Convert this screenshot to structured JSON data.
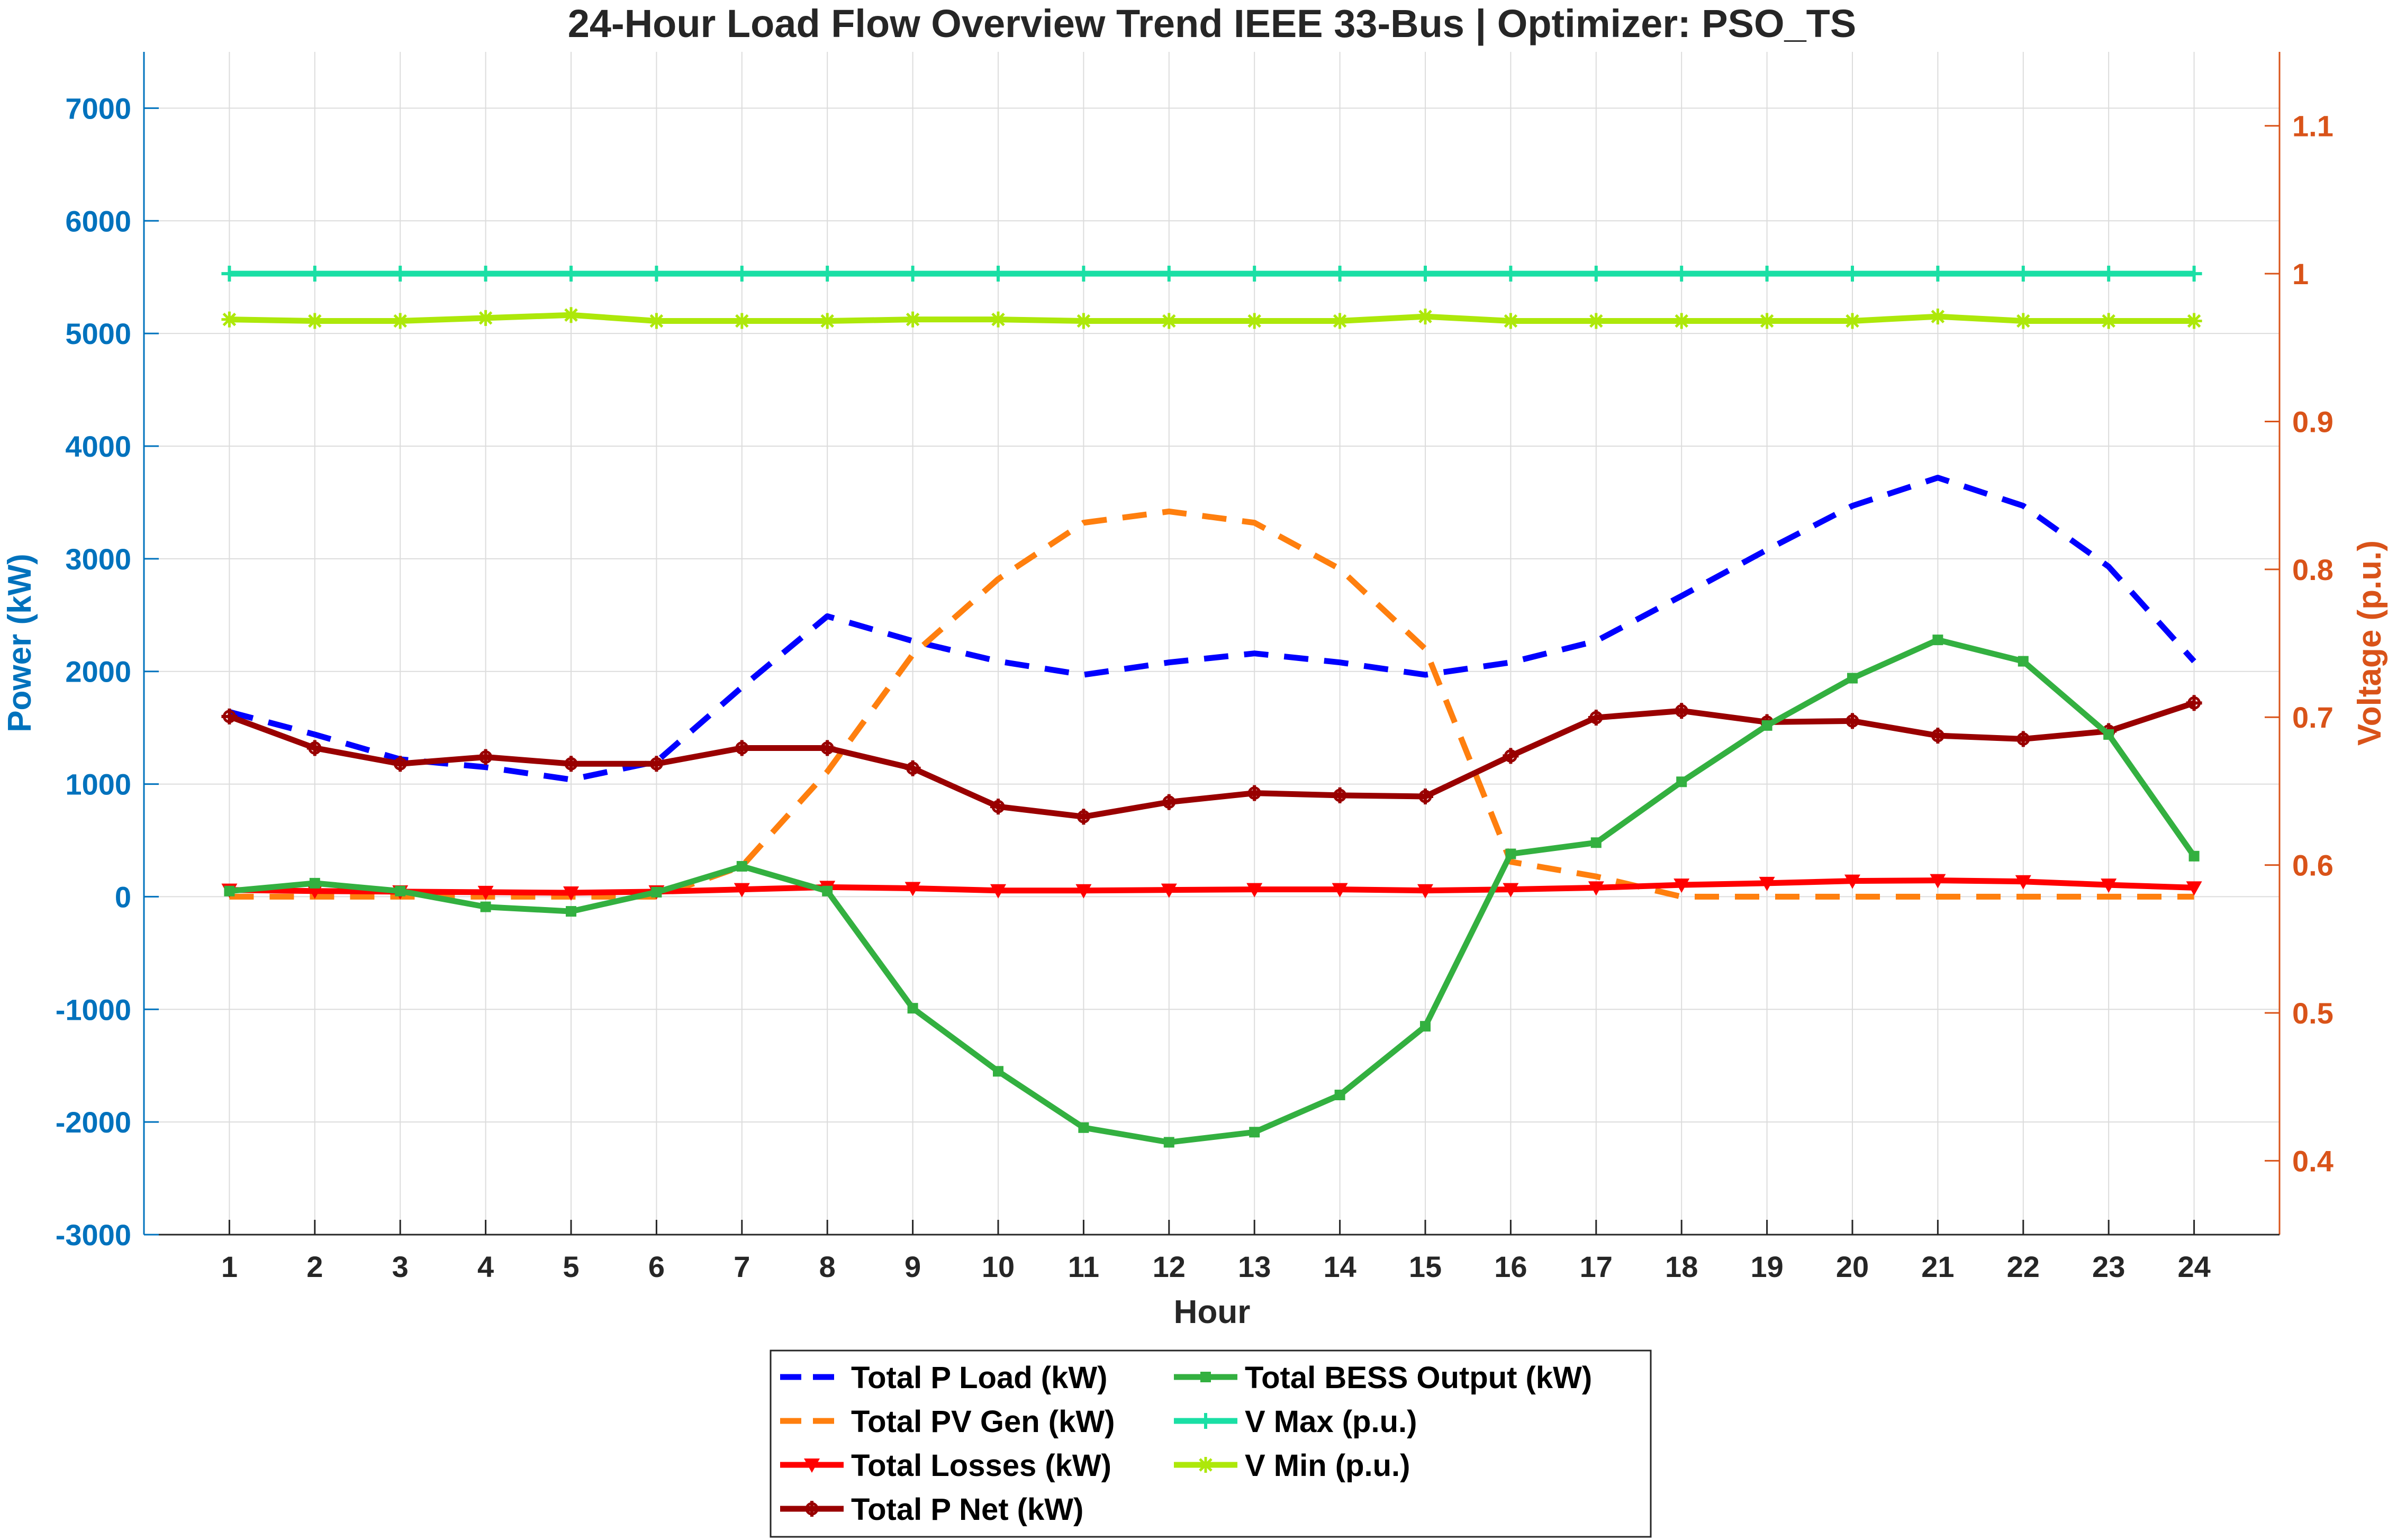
{
  "chart_data": {
    "type": "line",
    "title": "24-Hour Load Flow Overview Trend IEEE 33-Bus | Optimizer: PSO_TS",
    "xlabel": "Hour",
    "ylabel_left": "Power (kW)",
    "ylabel_right": "Voltage (p.u.)",
    "x": [
      1,
      2,
      3,
      4,
      5,
      6,
      7,
      8,
      9,
      10,
      11,
      12,
      13,
      14,
      15,
      16,
      17,
      18,
      19,
      20,
      21,
      22,
      23,
      24
    ],
    "xlim": [
      0,
      25
    ],
    "ylim_left": [
      -3000,
      7500
    ],
    "yticks_left": [
      -3000,
      -2000,
      -1000,
      0,
      1000,
      2000,
      3000,
      4000,
      5000,
      6000,
      7000
    ],
    "ylim_right": [
      0.35,
      1.15
    ],
    "yticks_right": [
      0.4,
      0.5,
      0.6,
      0.7,
      0.8,
      0.9,
      1,
      1.1
    ],
    "grid": true,
    "legend_position": "below plot, 2 columns",
    "colors": {
      "left_axis": "#0072BD",
      "right_axis": "#D95319"
    },
    "series": [
      {
        "name": "Total P Load (kW)",
        "axis": "left",
        "color": "#0000FF",
        "style": "dashed",
        "marker": "none",
        "values": [
          1640,
          1440,
          1220,
          1150,
          1040,
          1200,
          1860,
          2490,
          2270,
          2090,
          1970,
          2080,
          2160,
          2080,
          1970,
          2080,
          2270,
          2670,
          3080,
          3470,
          3720,
          3470,
          2930,
          2090
        ]
      },
      {
        "name": "Total PV Gen (kW)",
        "axis": "left",
        "color": "#FF7F0E",
        "style": "dashed",
        "marker": "none",
        "values": [
          0,
          0,
          0,
          0,
          0,
          0,
          270,
          1110,
          2150,
          2820,
          3320,
          3420,
          3320,
          2910,
          2200,
          310,
          180,
          0,
          0,
          0,
          0,
          0,
          0,
          0
        ]
      },
      {
        "name": "Total Losses (kW)",
        "axis": "left",
        "color": "#FF0000",
        "style": "solid",
        "marker": "triangle-down",
        "values": [
          60,
          50,
          45,
          40,
          35,
          45,
          65,
          85,
          75,
          55,
          55,
          60,
          65,
          65,
          55,
          65,
          80,
          105,
          120,
          140,
          145,
          135,
          105,
          80
        ]
      },
      {
        "name": "Total P Net (kW)",
        "axis": "left",
        "color": "#990000",
        "style": "solid",
        "marker": "cross",
        "values": [
          1600,
          1320,
          1180,
          1240,
          1180,
          1180,
          1320,
          1320,
          1140,
          800,
          710,
          840,
          920,
          900,
          890,
          1250,
          1590,
          1650,
          1550,
          1560,
          1430,
          1400,
          1470,
          1720
        ]
      },
      {
        "name": "Total BESS Output (kW)",
        "axis": "left",
        "color": "#33B040",
        "style": "solid",
        "marker": "square",
        "values": [
          50,
          120,
          50,
          -90,
          -130,
          40,
          270,
          50,
          -990,
          -1550,
          -2050,
          -2180,
          -2090,
          -1760,
          -1150,
          380,
          480,
          1020,
          1520,
          1940,
          2280,
          2090,
          1440,
          360
        ]
      },
      {
        "name": "V Max (p.u.)",
        "axis": "right",
        "color": "#1ADFA5",
        "style": "solid",
        "marker": "plus",
        "values": [
          1,
          1,
          1,
          1,
          1,
          1,
          1,
          1,
          1,
          1,
          1,
          1,
          1,
          1,
          1,
          1,
          1,
          1,
          1,
          1,
          1,
          1,
          1,
          1
        ]
      },
      {
        "name": "V Min (p.u.)",
        "axis": "right",
        "color": "#ADE80A",
        "style": "solid",
        "marker": "star",
        "values": [
          0.969,
          0.968,
          0.968,
          0.97,
          0.972,
          0.968,
          0.968,
          0.968,
          0.969,
          0.969,
          0.968,
          0.968,
          0.968,
          0.968,
          0.971,
          0.968,
          0.968,
          0.968,
          0.968,
          0.968,
          0.971,
          0.968,
          0.968,
          0.968
        ]
      }
    ]
  }
}
